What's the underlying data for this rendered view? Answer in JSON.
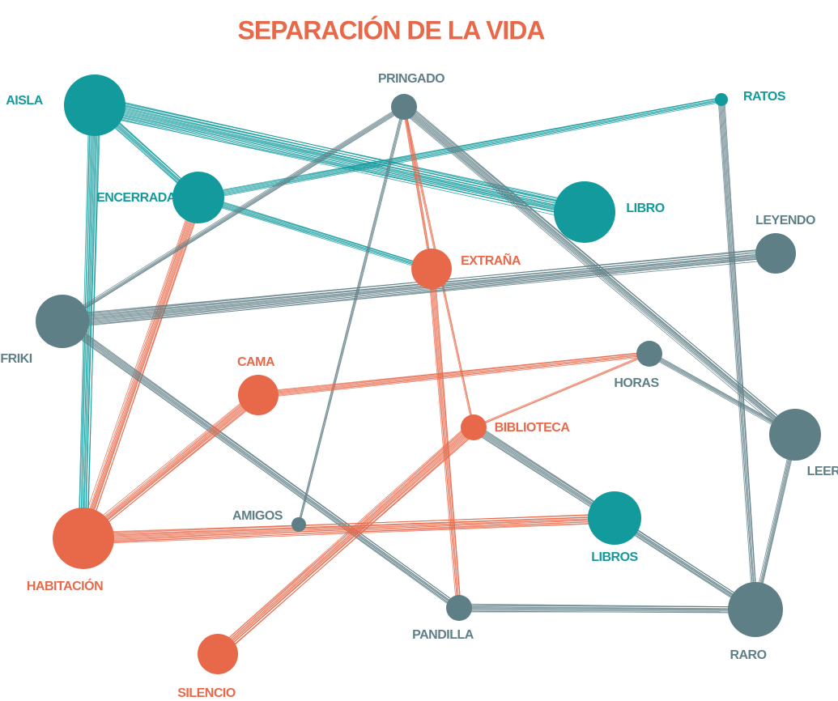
{
  "title": "SEPARACIÓN DE LA VIDA",
  "nodes": [
    {
      "label": "AISLA"
    },
    {
      "label": "PRINGADO"
    },
    {
      "label": "RATOS"
    },
    {
      "label": "ENCERRADA"
    },
    {
      "label": "LIBRO"
    },
    {
      "label": "LEYENDO"
    },
    {
      "label": "EXTRAÑA"
    },
    {
      "label": "FRIKI"
    },
    {
      "label": "CAMA"
    },
    {
      "label": "HORAS"
    },
    {
      "label": "BIBLIOTECA"
    },
    {
      "label": "LEER"
    },
    {
      "label": "AMIGOS"
    },
    {
      "label": "LIBROS"
    },
    {
      "label": "HABITACIÓN"
    },
    {
      "label": "PANDILLA"
    },
    {
      "label": "RARO"
    },
    {
      "label": "SILENCIO"
    }
  ]
}
